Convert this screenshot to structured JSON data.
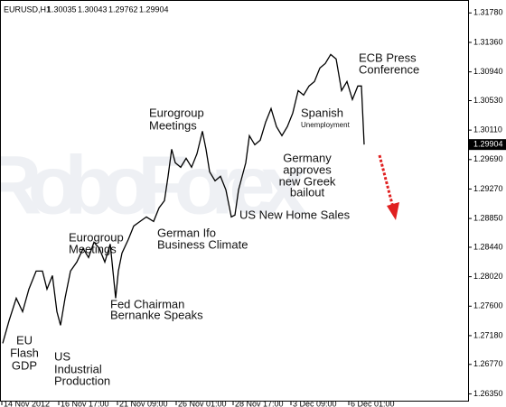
{
  "chart_data": {
    "type": "line",
    "header": {
      "symbol": "EURUSD,H1",
      "ohlc": [
        1.30035,
        1.30043,
        1.29762,
        1.29904
      ]
    },
    "watermark": "RoboForex",
    "current_price": 1.29904,
    "series": [
      {
        "name": "EURUSD",
        "color": "#000000",
        "x": [
          3,
          10,
          18,
          25,
          32,
          40,
          47,
          52,
          58,
          63,
          67,
          72,
          78,
          85,
          92,
          98,
          104,
          110,
          116,
          122,
          128,
          131,
          135,
          142,
          148,
          155,
          162,
          170,
          176,
          182,
          186,
          190,
          194,
          200,
          206,
          212,
          218,
          224,
          228,
          232,
          238,
          244,
          250,
          256,
          260,
          264,
          268,
          272,
          276,
          282,
          288,
          294,
          300,
          306,
          312,
          318,
          324,
          330,
          336,
          342,
          348,
          354,
          360,
          366,
          372,
          378,
          384,
          390,
          396,
          400,
          403
        ],
        "values": [
          1.27071,
          1.27392,
          1.27714,
          1.27521,
          1.27843,
          1.281,
          1.281,
          1.27843,
          1.28036,
          1.27521,
          1.27328,
          1.27714,
          1.281,
          1.28229,
          1.28422,
          1.28293,
          1.28512,
          1.28422,
          1.28229,
          1.28486,
          1.27714,
          1.281,
          1.28357,
          1.2855,
          1.28743,
          1.28808,
          1.28872,
          1.28808,
          1.29001,
          1.29104,
          1.29451,
          1.29837,
          1.29644,
          1.2958,
          1.29708,
          1.2958,
          1.29773,
          1.30094,
          1.29837,
          1.29515,
          1.29387,
          1.29451,
          1.29258,
          1.28872,
          1.28898,
          1.29258,
          1.29451,
          1.29644,
          1.3003,
          1.29901,
          1.29966,
          1.30223,
          1.30416,
          1.30159,
          1.3003,
          1.30159,
          1.30352,
          1.30673,
          1.30609,
          1.30738,
          1.30802,
          1.30995,
          1.31059,
          1.31188,
          1.31124,
          1.30673,
          1.30802,
          1.30545,
          1.30738,
          1.30738,
          1.29904
        ]
      }
    ],
    "xlim": [
      0,
      518
    ],
    "xticks": [
      {
        "value": 2,
        "label": "14 Nov 2012"
      },
      {
        "value": 65,
        "label": "16 Nov 17:00"
      },
      {
        "value": 130,
        "label": "21 Nov 09:00"
      },
      {
        "value": 195,
        "label": "26 Nov 01:00"
      },
      {
        "value": 258,
        "label": "28 Nov 17:00"
      },
      {
        "value": 322,
        "label": "3 Dec 09:00"
      },
      {
        "value": 386,
        "label": "6 Dec 01:00"
      }
    ],
    "ylim": [
      1.2624,
      1.319
    ],
    "yticks": [
      {
        "value": 1.3178,
        "label": "1.31780"
      },
      {
        "value": 1.3136,
        "label": "1.31360"
      },
      {
        "value": 1.3094,
        "label": "1.30940"
      },
      {
        "value": 1.3053,
        "label": "1.30530"
      },
      {
        "value": 1.3011,
        "label": "1.30110"
      },
      {
        "value": 1.2969,
        "label": "1.29690"
      },
      {
        "value": 1.2927,
        "label": "1.29270"
      },
      {
        "value": 1.2885,
        "label": "1.28850"
      },
      {
        "value": 1.2844,
        "label": "1.28440"
      },
      {
        "value": 1.2802,
        "label": "1.28020"
      },
      {
        "value": 1.276,
        "label": "1.27600"
      },
      {
        "value": 1.2718,
        "label": "1.27180"
      },
      {
        "value": 1.2677,
        "label": "1.26770"
      },
      {
        "value": 1.2635,
        "label": "1.26350"
      }
    ],
    "annotations": [
      {
        "lines": [
          "EU",
          "Flash",
          "GDP"
        ]
      },
      {
        "lines": [
          "US",
          "Industrial",
          "Production"
        ]
      },
      {
        "lines": [
          "Eurogroup",
          "Meetings"
        ]
      },
      {
        "lines": [
          "Fed Chairman",
          "Bernanke Speaks"
        ]
      },
      {
        "lines": [
          "German Ifo",
          "Business Climate"
        ]
      },
      {
        "lines": [
          "Eurogroup",
          "Meetings"
        ]
      },
      {
        "lines": [
          "US New Home Sales"
        ]
      },
      {
        "lines": [
          "Spanish",
          "Unemployment"
        ]
      },
      {
        "lines": [
          "Germany",
          "approves",
          "new Greek",
          "bailout"
        ]
      },
      {
        "lines": [
          "ECB Press",
          "Conference"
        ]
      }
    ]
  }
}
